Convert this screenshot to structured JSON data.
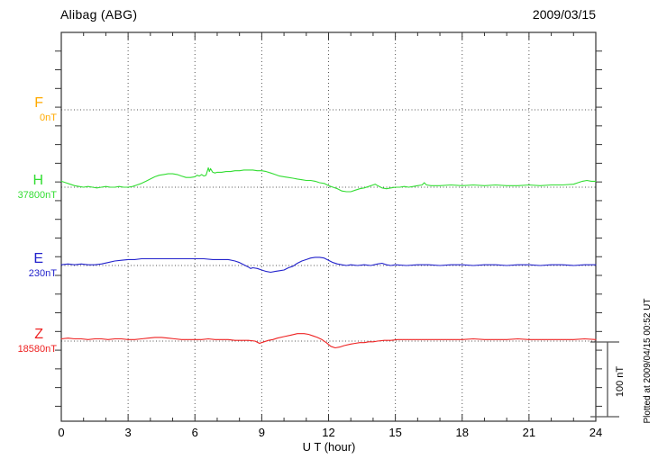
{
  "header": {
    "title": "Alibag (ABG)",
    "date": "2009/03/15"
  },
  "footer": {
    "xlabel": "U T (hour)"
  },
  "side": {
    "plotted_at": "Plotted at 2009/04/15 00:52 UT",
    "scale_label": "100 nT"
  },
  "chart_data": {
    "type": "line",
    "title": "Alibag (ABG)",
    "date": "2009/03/15",
    "xlabel": "U T (hour)",
    "x_range": [
      0,
      24
    ],
    "x_ticks": [
      0,
      3,
      6,
      9,
      12,
      15,
      18,
      21,
      24
    ],
    "grid": "dotted-vertical-every-3h-and-horizontal-baselines",
    "scale_bar_nT": 100,
    "plotted_at": "Plotted at 2009/04/15 00:52 UT",
    "components": [
      {
        "label": "F",
        "base_label": "0nT",
        "base_value_nT": 0,
        "color": "#ffaa00",
        "series": []
      },
      {
        "label": "H",
        "base_label": "37800nT",
        "base_value_nT": 37800,
        "color": "#33dd33",
        "series": [
          [
            0,
            8
          ],
          [
            0.2,
            6
          ],
          [
            0.4,
            4
          ],
          [
            0.6,
            2
          ],
          [
            0.8,
            1
          ],
          [
            1,
            0
          ],
          [
            1.2,
            1
          ],
          [
            1.4,
            0
          ],
          [
            1.6,
            -1
          ],
          [
            1.8,
            0
          ],
          [
            2,
            1
          ],
          [
            2.2,
            0
          ],
          [
            2.4,
            0
          ],
          [
            2.6,
            1
          ],
          [
            2.8,
            0
          ],
          [
            3,
            0
          ],
          [
            3.2,
            1
          ],
          [
            3.4,
            3
          ],
          [
            3.6,
            5
          ],
          [
            3.8,
            8
          ],
          [
            4,
            11
          ],
          [
            4.2,
            14
          ],
          [
            4.4,
            16
          ],
          [
            4.6,
            17
          ],
          [
            4.8,
            18
          ],
          [
            5,
            18
          ],
          [
            5.2,
            17
          ],
          [
            5.4,
            15
          ],
          [
            5.6,
            13
          ],
          [
            5.8,
            13
          ],
          [
            6,
            14
          ],
          [
            6.1,
            16
          ],
          [
            6.2,
            15
          ],
          [
            6.3,
            17
          ],
          [
            6.4,
            15
          ],
          [
            6.5,
            16
          ],
          [
            6.6,
            26
          ],
          [
            6.65,
            21
          ],
          [
            6.7,
            25
          ],
          [
            6.8,
            20
          ],
          [
            6.9,
            19
          ],
          [
            7,
            20
          ],
          [
            7.2,
            20
          ],
          [
            7.4,
            21
          ],
          [
            7.6,
            21
          ],
          [
            7.8,
            22
          ],
          [
            8,
            22
          ],
          [
            8.2,
            23
          ],
          [
            8.4,
            23
          ],
          [
            8.6,
            23
          ],
          [
            8.8,
            22
          ],
          [
            9,
            22
          ],
          [
            9.2,
            21
          ],
          [
            9.4,
            19
          ],
          [
            9.6,
            17
          ],
          [
            9.8,
            15
          ],
          [
            10,
            14
          ],
          [
            10.2,
            13
          ],
          [
            10.4,
            12
          ],
          [
            10.6,
            11
          ],
          [
            10.8,
            10
          ],
          [
            11,
            9
          ],
          [
            11.2,
            9
          ],
          [
            11.4,
            8
          ],
          [
            11.6,
            6
          ],
          [
            11.8,
            5
          ],
          [
            12,
            2
          ],
          [
            12.2,
            0
          ],
          [
            12.4,
            -2
          ],
          [
            12.6,
            -5
          ],
          [
            12.8,
            -6
          ],
          [
            13,
            -6
          ],
          [
            13.2,
            -4
          ],
          [
            13.4,
            -2
          ],
          [
            13.6,
            -1
          ],
          [
            13.8,
            1
          ],
          [
            14,
            3
          ],
          [
            14.1,
            4
          ],
          [
            14.2,
            2
          ],
          [
            14.4,
            -1
          ],
          [
            14.6,
            -2
          ],
          [
            14.8,
            -1
          ],
          [
            15,
            0
          ],
          [
            15.2,
            0
          ],
          [
            15.4,
            1
          ],
          [
            15.6,
            0
          ],
          [
            15.8,
            1
          ],
          [
            16,
            2
          ],
          [
            16.2,
            3
          ],
          [
            16.3,
            6
          ],
          [
            16.4,
            3
          ],
          [
            16.6,
            2
          ],
          [
            16.8,
            2
          ],
          [
            17,
            2
          ],
          [
            17.5,
            3
          ],
          [
            18,
            2
          ],
          [
            18.5,
            3
          ],
          [
            19,
            2
          ],
          [
            19.5,
            3
          ],
          [
            20,
            2
          ],
          [
            20.5,
            2
          ],
          [
            21,
            3
          ],
          [
            21.5,
            2
          ],
          [
            22,
            3
          ],
          [
            22.5,
            3
          ],
          [
            23,
            4
          ],
          [
            23.2,
            6
          ],
          [
            23.4,
            8
          ],
          [
            23.6,
            9
          ],
          [
            23.8,
            8
          ],
          [
            24,
            8
          ]
        ]
      },
      {
        "label": "E",
        "base_label": "230nT",
        "base_value_nT": 230,
        "color": "#2222cc",
        "series": [
          [
            0,
            1
          ],
          [
            0.3,
            2
          ],
          [
            0.6,
            1
          ],
          [
            0.9,
            2
          ],
          [
            1.2,
            1
          ],
          [
            1.5,
            1
          ],
          [
            1.8,
            2
          ],
          [
            2.1,
            4
          ],
          [
            2.4,
            6
          ],
          [
            2.7,
            7
          ],
          [
            3,
            8
          ],
          [
            3.3,
            8
          ],
          [
            3.6,
            9
          ],
          [
            4,
            9
          ],
          [
            4.4,
            9
          ],
          [
            4.8,
            9
          ],
          [
            5.2,
            9
          ],
          [
            5.6,
            9
          ],
          [
            6,
            9
          ],
          [
            6.4,
            9
          ],
          [
            6.8,
            8
          ],
          [
            7.2,
            8
          ],
          [
            7.5,
            8
          ],
          [
            7.8,
            6
          ],
          [
            8,
            4
          ],
          [
            8.2,
            1
          ],
          [
            8.4,
            -2
          ],
          [
            8.5,
            -4
          ],
          [
            8.6,
            -3
          ],
          [
            8.8,
            -4
          ],
          [
            9,
            -6
          ],
          [
            9.2,
            -8
          ],
          [
            9.4,
            -9
          ],
          [
            9.6,
            -8
          ],
          [
            9.8,
            -7
          ],
          [
            10,
            -6
          ],
          [
            10.2,
            -3
          ],
          [
            10.4,
            -1
          ],
          [
            10.6,
            3
          ],
          [
            10.8,
            6
          ],
          [
            11,
            8
          ],
          [
            11.2,
            10
          ],
          [
            11.4,
            11
          ],
          [
            11.6,
            11
          ],
          [
            11.8,
            10
          ],
          [
            12,
            7
          ],
          [
            12.2,
            4
          ],
          [
            12.4,
            2
          ],
          [
            12.6,
            1
          ],
          [
            12.8,
            0
          ],
          [
            13,
            1
          ],
          [
            13.3,
            0
          ],
          [
            13.6,
            1
          ],
          [
            13.9,
            0
          ],
          [
            14.2,
            2
          ],
          [
            14.4,
            3
          ],
          [
            14.6,
            1
          ],
          [
            14.8,
            0
          ],
          [
            15,
            1
          ],
          [
            15.5,
            0
          ],
          [
            16,
            1
          ],
          [
            16.5,
            1
          ],
          [
            17,
            0
          ],
          [
            17.5,
            1
          ],
          [
            18,
            1
          ],
          [
            18.5,
            0
          ],
          [
            19,
            1
          ],
          [
            19.5,
            1
          ],
          [
            20,
            0
          ],
          [
            20.5,
            1
          ],
          [
            21,
            1
          ],
          [
            21.5,
            0
          ],
          [
            22,
            1
          ],
          [
            22.5,
            1
          ],
          [
            23,
            0
          ],
          [
            23.5,
            1
          ],
          [
            24,
            1
          ]
        ]
      },
      {
        "label": "Z",
        "base_label": "18580nT",
        "base_value_nT": 18580,
        "color": "#ee2222",
        "series": [
          [
            0,
            3
          ],
          [
            0.3,
            4
          ],
          [
            0.6,
            3
          ],
          [
            0.9,
            3
          ],
          [
            1.2,
            2
          ],
          [
            1.5,
            3
          ],
          [
            1.8,
            3
          ],
          [
            2.1,
            2
          ],
          [
            2.4,
            3
          ],
          [
            2.7,
            3
          ],
          [
            3,
            2
          ],
          [
            3.3,
            2
          ],
          [
            3.6,
            3
          ],
          [
            3.9,
            4
          ],
          [
            4.2,
            5
          ],
          [
            4.5,
            5
          ],
          [
            4.8,
            4
          ],
          [
            5.1,
            3
          ],
          [
            5.4,
            2
          ],
          [
            5.7,
            2
          ],
          [
            6,
            2
          ],
          [
            6.3,
            2
          ],
          [
            6.6,
            3
          ],
          [
            6.9,
            2
          ],
          [
            7.2,
            2
          ],
          [
            7.5,
            2
          ],
          [
            7.8,
            1
          ],
          [
            8.1,
            1
          ],
          [
            8.4,
            1
          ],
          [
            8.7,
            0
          ],
          [
            8.9,
            -3
          ],
          [
            9.1,
            -1
          ],
          [
            9.3,
            1
          ],
          [
            9.5,
            2
          ],
          [
            9.7,
            4
          ],
          [
            10,
            6
          ],
          [
            10.3,
            8
          ],
          [
            10.6,
            10
          ],
          [
            10.9,
            10
          ],
          [
            11.1,
            9
          ],
          [
            11.3,
            7
          ],
          [
            11.5,
            5
          ],
          [
            11.7,
            2
          ],
          [
            11.9,
            -2
          ],
          [
            12.1,
            -7
          ],
          [
            12.3,
            -9
          ],
          [
            12.5,
            -8
          ],
          [
            12.7,
            -6
          ],
          [
            13,
            -4
          ],
          [
            13.2,
            -3
          ],
          [
            13.4,
            -2
          ],
          [
            13.6,
            -2
          ],
          [
            13.8,
            -1
          ],
          [
            14,
            -1
          ],
          [
            14.2,
            0
          ],
          [
            14.5,
            1
          ],
          [
            14.8,
            1
          ],
          [
            15.1,
            2
          ],
          [
            15.5,
            2
          ],
          [
            16,
            2
          ],
          [
            16.5,
            2
          ],
          [
            17,
            2
          ],
          [
            17.5,
            2
          ],
          [
            18,
            2
          ],
          [
            18.5,
            3
          ],
          [
            19,
            2
          ],
          [
            19.5,
            2
          ],
          [
            20,
            2
          ],
          [
            20.5,
            3
          ],
          [
            21,
            2
          ],
          [
            21.5,
            2
          ],
          [
            22,
            2
          ],
          [
            22.5,
            2
          ],
          [
            23,
            2
          ],
          [
            23.5,
            3
          ],
          [
            24,
            2
          ]
        ]
      }
    ]
  }
}
